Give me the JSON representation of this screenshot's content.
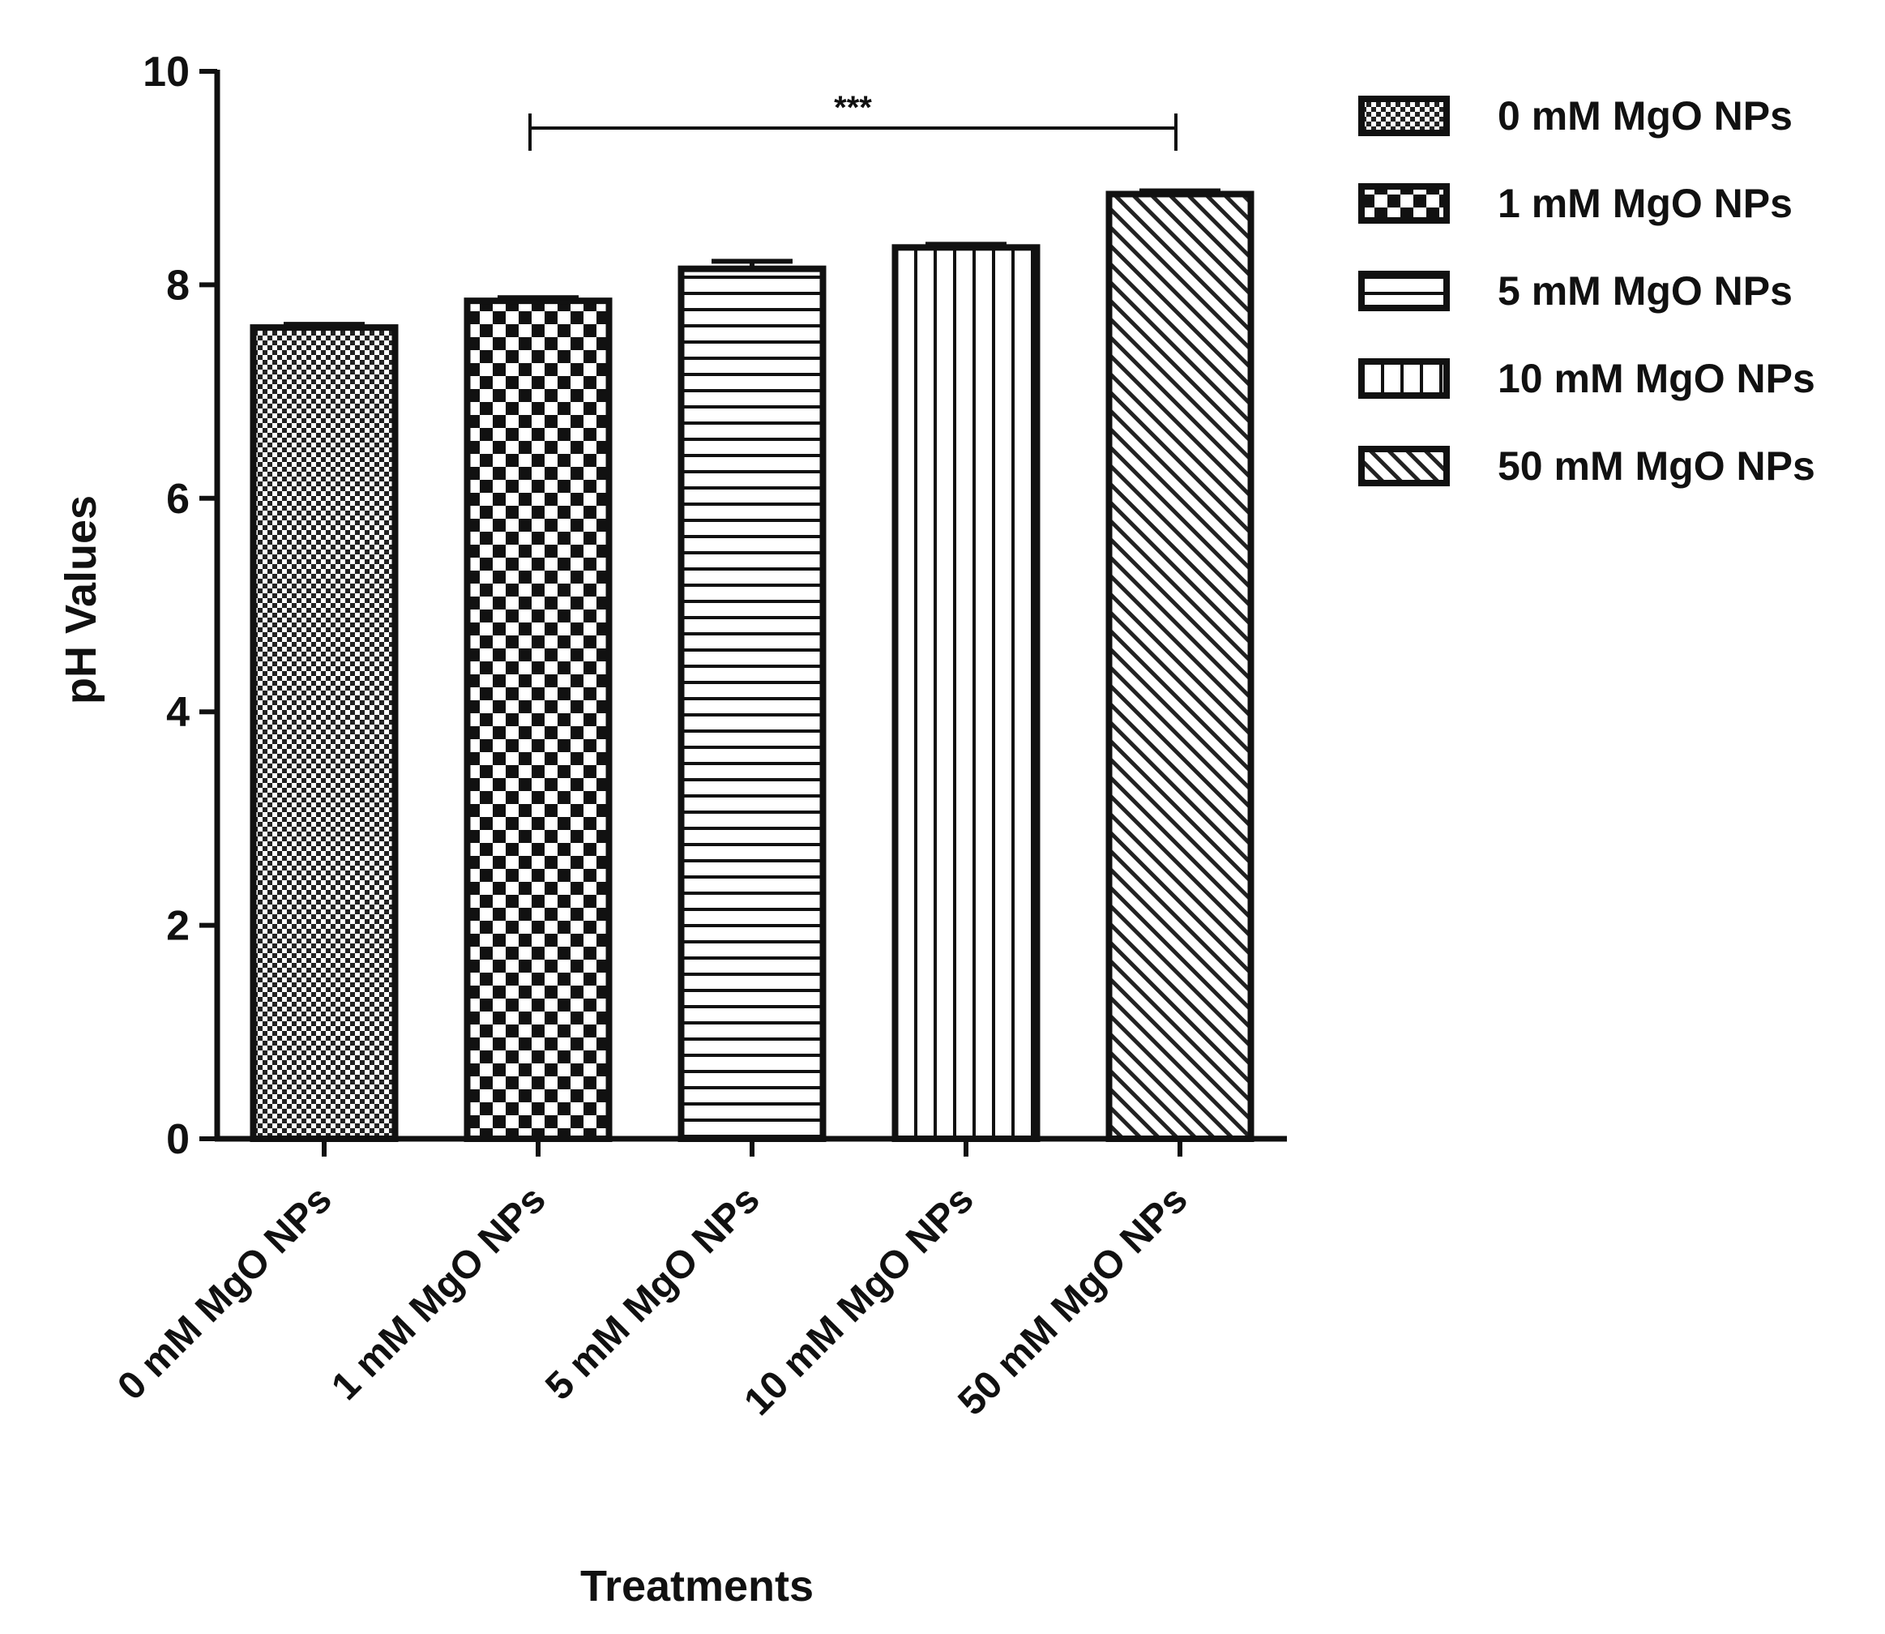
{
  "chart_data": {
    "type": "bar",
    "title": "",
    "xlabel": "Treatments",
    "ylabel": "pH Values",
    "ylim": [
      0,
      10
    ],
    "yticks": [
      "0",
      "2",
      "4",
      "6",
      "8",
      "10"
    ],
    "categories": [
      "0 mM MgO NPs",
      "1 mM MgO NPs",
      "5 mM MgO NPs",
      "10 mM MgO NPs",
      "50 mM MgO NPs"
    ],
    "values": [
      7.6,
      7.85,
      8.15,
      8.35,
      8.85
    ],
    "errors": [
      0.03,
      0.03,
      0.07,
      0.03,
      0.03
    ],
    "patterns": [
      "fine-dots",
      "checker",
      "horizontal-lines",
      "vertical-lines",
      "diagonal-lines"
    ],
    "legend": {
      "position": "top-right",
      "entries": [
        "0 mM MgO NPs",
        "1 mM MgO NPs",
        "5 mM MgO NPs",
        "10 mM MgO NPs",
        "50 mM MgO NPs"
      ]
    },
    "annotations": [
      {
        "text": "***",
        "from_category": 1,
        "to_category": 4
      }
    ],
    "grid": false
  }
}
